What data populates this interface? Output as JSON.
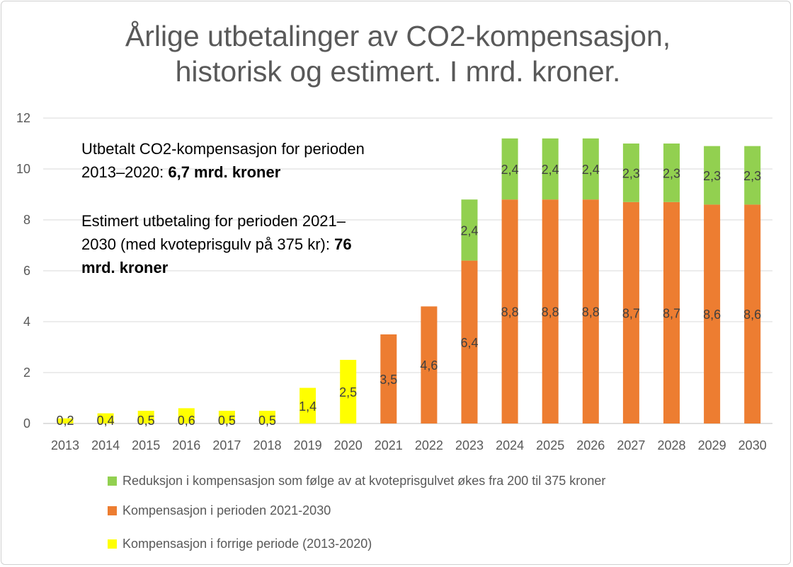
{
  "chart_data": {
    "type": "bar",
    "stacked": true,
    "title_lines": [
      "Årlige utbetalinger av CO2-kompensasjon,",
      "historisk og estimert. I mrd. kroner."
    ],
    "categories": [
      "2013",
      "2014",
      "2015",
      "2016",
      "2017",
      "2018",
      "2019",
      "2020",
      "2021",
      "2022",
      "2023",
      "2024",
      "2025",
      "2026",
      "2027",
      "2028",
      "2029",
      "2030"
    ],
    "series": [
      {
        "name": "Kompensasjon i forrige periode (2013-2020)",
        "color": "#ffff00",
        "values": [
          0.2,
          0.4,
          0.5,
          0.6,
          0.5,
          0.5,
          1.4,
          2.5,
          null,
          null,
          null,
          null,
          null,
          null,
          null,
          null,
          null,
          null
        ]
      },
      {
        "name": "Kompensasjon i perioden 2021-2030",
        "color": "#ed7d31",
        "values": [
          null,
          null,
          null,
          null,
          null,
          null,
          null,
          null,
          3.5,
          4.6,
          6.4,
          8.8,
          8.8,
          8.8,
          8.7,
          8.7,
          8.6,
          8.6
        ]
      },
      {
        "name": "Reduksjon i kompensasjon som følge av at kvoteprisgulvet økes fra 200 til 375 kroner",
        "color": "#92d050",
        "values": [
          null,
          null,
          null,
          null,
          null,
          null,
          null,
          null,
          null,
          null,
          2.4,
          2.4,
          2.4,
          2.4,
          2.3,
          2.3,
          2.3,
          2.3
        ]
      }
    ],
    "ylim": [
      0,
      12
    ],
    "yticks": [
      0,
      2,
      4,
      6,
      8,
      10,
      12
    ],
    "grid": true,
    "legend_position": "bottom",
    "annotations": [
      {
        "lines": [
          [
            "Utbetalt CO2-kompensasjon for perioden",
            ""
          ],
          [
            "2013–2020: ",
            "6,7 mrd. kroner"
          ]
        ]
      },
      {
        "lines": [
          [
            "Estimert utbetaling for perioden 2021–",
            ""
          ],
          [
            "2030 (med kvoteprisgulv på 375 kr): ",
            "76"
          ],
          [
            "",
            "mrd. kroner"
          ]
        ]
      }
    ]
  }
}
